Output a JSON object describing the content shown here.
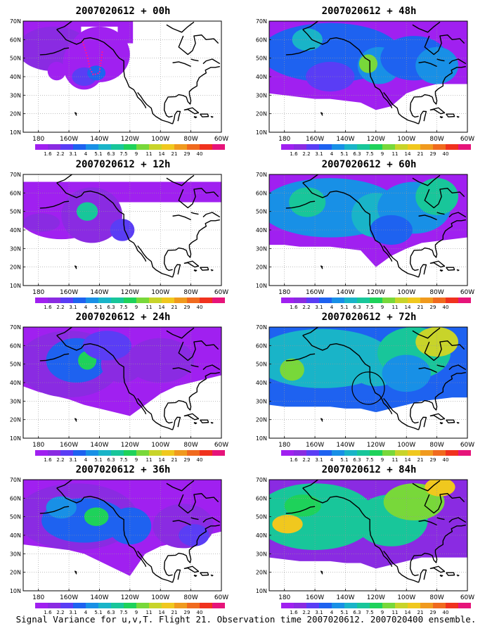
{
  "palette": [
    "#a020f0",
    "#8a2be2",
    "#5a3df5",
    "#1e62f0",
    "#1890e6",
    "#19b4c8",
    "#18c69a",
    "#1ed25a",
    "#78d83a",
    "#c8d42a",
    "#f0c81e",
    "#f09a1e",
    "#f06a1e",
    "#f0321e",
    "#e6147a"
  ],
  "legend_labels": [
    "1.6",
    "2.2",
    "3.1",
    "4",
    "5.1",
    "6.3",
    "7.5",
    "9",
    "11",
    "14",
    "21",
    "29",
    "40"
  ],
  "lat_labels": [
    "70N",
    "60N",
    "50N",
    "40N",
    "30N",
    "20N",
    "10N"
  ],
  "lon_labels": [
    "180",
    "160W",
    "140W",
    "120W",
    "100W",
    "80W",
    "60W"
  ],
  "panels": [
    {
      "id": "p00",
      "title": "2007020612 + 00h",
      "lead_hours": 0
    },
    {
      "id": "p48",
      "title": "2007020612 + 48h",
      "lead_hours": 48
    },
    {
      "id": "p12",
      "title": "2007020612 + 12h",
      "lead_hours": 12
    },
    {
      "id": "p60",
      "title": "2007020612 + 60h",
      "lead_hours": 60
    },
    {
      "id": "p24",
      "title": "2007020612 + 24h",
      "lead_hours": 24
    },
    {
      "id": "p72",
      "title": "2007020612 + 72h",
      "lead_hours": 72
    },
    {
      "id": "p36",
      "title": "2007020612 + 36h",
      "lead_hours": 36
    },
    {
      "id": "p84",
      "title": "2007020612 + 84h",
      "lead_hours": 84
    }
  ],
  "footer": "Signal Variance for u,v,T. Flight 21. Observation time 2007020612. 2007020400 ensemble."
}
